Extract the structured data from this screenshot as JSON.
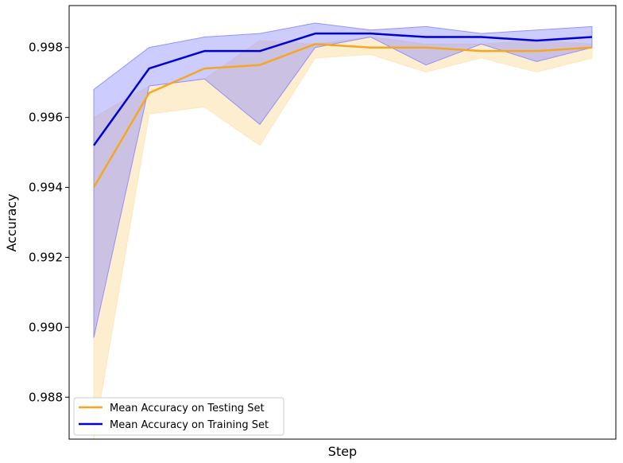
{
  "chart_data": {
    "type": "line",
    "xlabel": "Step",
    "ylabel": "Accuracy",
    "x": [
      1,
      2,
      3,
      4,
      5,
      6,
      7,
      8,
      9,
      10
    ],
    "ylim": [
      0.9868,
      0.9992
    ],
    "yticks": [
      "0.988",
      "0.990",
      "0.992",
      "0.994",
      "0.996",
      "0.998"
    ],
    "x_ticks_shown": false,
    "grid": false,
    "legend_position": "bottom-left",
    "series": [
      {
        "name": "Mean Accuracy on Testing Set",
        "color": "#f5a623",
        "band_color": "#fde2b0",
        "mean": [
          0.994,
          0.9967,
          0.9974,
          0.9975,
          0.9981,
          0.998,
          0.998,
          0.9979,
          0.9979,
          0.998
        ],
        "upper": [
          0.996,
          0.9969,
          0.9971,
          0.9982,
          0.9981,
          0.9983,
          0.9981,
          0.9981,
          0.9982,
          0.9981
        ],
        "lower": [
          0.9868,
          0.9961,
          0.9963,
          0.9952,
          0.9977,
          0.9978,
          0.9973,
          0.9977,
          0.9973,
          0.9977
        ]
      },
      {
        "name": "Mean Accuracy on Training Set",
        "color": "#0000d0",
        "band_color": "#8080ff",
        "mean": [
          0.9952,
          0.9974,
          0.9979,
          0.9979,
          0.9984,
          0.9984,
          0.9983,
          0.9983,
          0.9982,
          0.9983
        ],
        "upper": [
          0.9968,
          0.998,
          0.9983,
          0.9984,
          0.9987,
          0.9985,
          0.9986,
          0.9984,
          0.9985,
          0.9986
        ],
        "lower": [
          0.9897,
          0.9969,
          0.9971,
          0.9958,
          0.998,
          0.9983,
          0.9975,
          0.9981,
          0.9976,
          0.998
        ]
      }
    ]
  }
}
